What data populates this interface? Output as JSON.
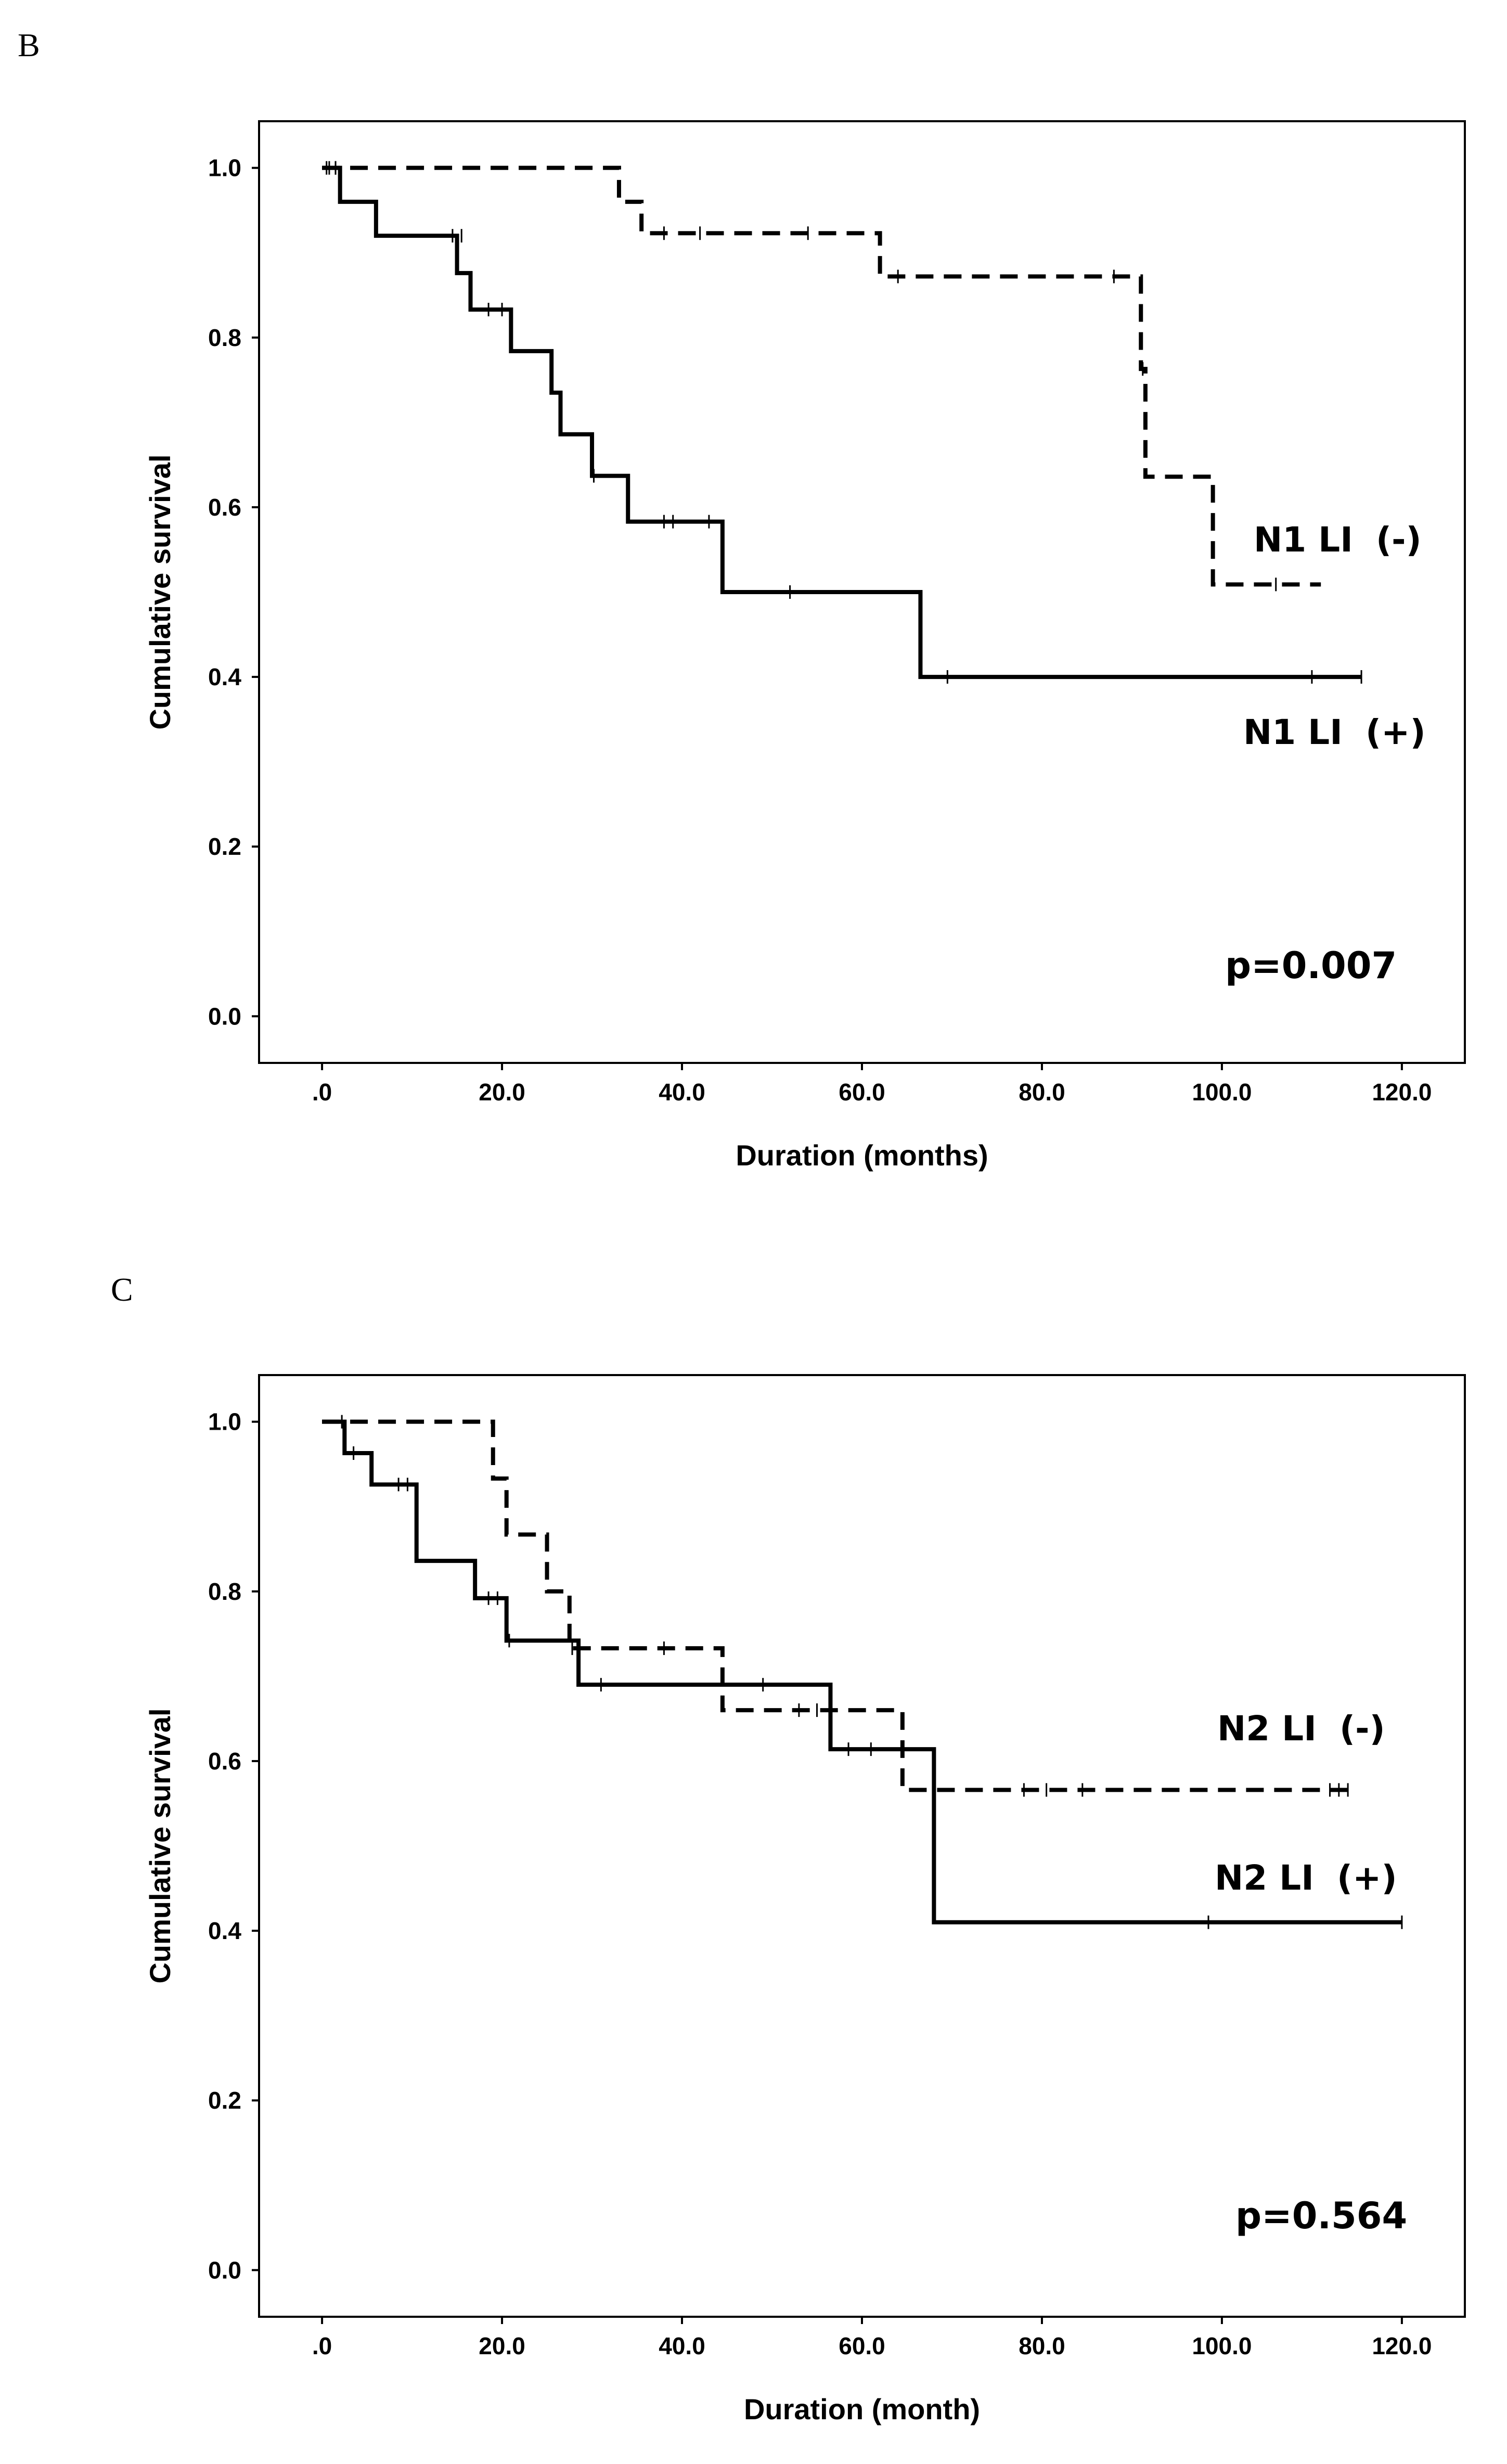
{
  "chart_data": [
    {
      "type": "line",
      "subtype": "kaplan-meier",
      "panel_label": "B",
      "xlabel": "Duration (months)",
      "ylabel": "Cumulative survival",
      "xlim": [
        -7,
        127
      ],
      "ylim": [
        -0.055,
        1.055
      ],
      "xticks": [
        0,
        20,
        40,
        60,
        80,
        100,
        120
      ],
      "xtick_labels": [
        ".0",
        "20.0",
        "40.0",
        "60.0",
        "80.0",
        "100.0",
        "120.0"
      ],
      "yticks": [
        0,
        0.2,
        0.4,
        0.6,
        0.8,
        1.0
      ],
      "ytick_labels": [
        "0.0",
        "0.2",
        "0.4",
        "0.6",
        "0.8",
        "1.0"
      ],
      "annotation": "p=0.007",
      "series": [
        {
          "name": "N1 LI (-)",
          "label_main": "N1 LI",
          "label_sign": "(-)",
          "style": "dashed",
          "steps": [
            [
              0,
              1.0
            ],
            [
              33,
              0.96
            ],
            [
              35.5,
              0.923
            ],
            [
              62,
              0.872
            ],
            [
              91,
              0.763
            ],
            [
              91.5,
              0.636
            ],
            [
              99,
              0.509
            ],
            [
              111,
              0.509
            ]
          ],
          "censored": [
            [
              0.8,
              1.0
            ],
            [
              1.5,
              1.0
            ],
            [
              38,
              0.923
            ],
            [
              42,
              0.923
            ],
            [
              54,
              0.923
            ],
            [
              64,
              0.872
            ],
            [
              88,
              0.872
            ],
            [
              91.2,
              0.763
            ],
            [
              106,
              0.509
            ]
          ]
        },
        {
          "name": "N1 LI (+)",
          "label_main": "N1 LI",
          "label_sign": "(+)",
          "style": "solid",
          "steps": [
            [
              0,
              1.0
            ],
            [
              2,
              0.96
            ],
            [
              6,
              0.92
            ],
            [
              15,
              0.876
            ],
            [
              16.5,
              0.833
            ],
            [
              21,
              0.784
            ],
            [
              25.5,
              0.735
            ],
            [
              26.5,
              0.686
            ],
            [
              30,
              0.637
            ],
            [
              34,
              0.583
            ],
            [
              44.5,
              0.5
            ],
            [
              66.5,
              0.4
            ],
            [
              115.5,
              0.4
            ]
          ],
          "censored": [
            [
              0.5,
              1.0
            ],
            [
              1.5,
              1.0
            ],
            [
              14.5,
              0.92
            ],
            [
              15.5,
              0.92
            ],
            [
              18.5,
              0.833
            ],
            [
              20,
              0.833
            ],
            [
              30.2,
              0.637
            ],
            [
              38,
              0.583
            ],
            [
              39,
              0.583
            ],
            [
              43,
              0.583
            ],
            [
              52,
              0.5
            ],
            [
              69.5,
              0.4
            ],
            [
              110,
              0.4
            ],
            [
              115.5,
              0.4
            ]
          ]
        }
      ]
    },
    {
      "type": "line",
      "subtype": "kaplan-meier",
      "panel_label": "C",
      "xlabel": "Duration (month)",
      "ylabel": "Cumulative survival",
      "xlim": [
        -7,
        127
      ],
      "ylim": [
        -0.055,
        1.055
      ],
      "xticks": [
        0,
        20,
        40,
        60,
        80,
        100,
        120
      ],
      "xtick_labels": [
        ".0",
        "20.0",
        "40.0",
        "60.0",
        "80.0",
        "100.0",
        "120.0"
      ],
      "yticks": [
        0,
        0.2,
        0.4,
        0.6,
        0.8,
        1.0
      ],
      "ytick_labels": [
        "0.0",
        "0.2",
        "0.4",
        "0.6",
        "0.8",
        "1.0"
      ],
      "annotation": "p=0.564",
      "series": [
        {
          "name": "N2 LI (-)",
          "label_main": "N2 LI",
          "label_sign": "(-)",
          "style": "dashed",
          "steps": [
            [
              0,
              1.0
            ],
            [
              19,
              0.933
            ],
            [
              20.5,
              0.867
            ],
            [
              25,
              0.8
            ],
            [
              27.5,
              0.733
            ],
            [
              44.5,
              0.66
            ],
            [
              64.5,
              0.566
            ],
            [
              114,
              0.566
            ]
          ],
          "censored": [
            [
              27.8,
              0.733
            ],
            [
              38,
              0.733
            ],
            [
              53,
              0.66
            ],
            [
              55,
              0.66
            ],
            [
              78,
              0.566
            ],
            [
              80.5,
              0.566
            ],
            [
              84.5,
              0.566
            ],
            [
              112,
              0.566
            ],
            [
              113,
              0.566
            ],
            [
              114,
              0.566
            ]
          ]
        },
        {
          "name": "N2 LI (+)",
          "label_main": "N2 LI",
          "label_sign": "(+)",
          "style": "solid",
          "steps": [
            [
              0,
              1.0
            ],
            [
              2.5,
              0.963
            ],
            [
              5.5,
              0.926
            ],
            [
              10.5,
              0.836
            ],
            [
              17,
              0.792
            ],
            [
              20.5,
              0.742
            ],
            [
              28.5,
              0.69
            ],
            [
              56.5,
              0.614
            ],
            [
              68,
              0.41
            ],
            [
              120,
              0.41
            ]
          ],
          "censored": [
            [
              2.2,
              1.0
            ],
            [
              3.5,
              0.963
            ],
            [
              8.5,
              0.926
            ],
            [
              9.5,
              0.926
            ],
            [
              18.5,
              0.792
            ],
            [
              19.5,
              0.792
            ],
            [
              20.8,
              0.742
            ],
            [
              31,
              0.69
            ],
            [
              49,
              0.69
            ],
            [
              58.5,
              0.614
            ],
            [
              61,
              0.614
            ],
            [
              64.5,
              0.614
            ],
            [
              98.5,
              0.41
            ],
            [
              120,
              0.41
            ]
          ]
        }
      ]
    }
  ]
}
